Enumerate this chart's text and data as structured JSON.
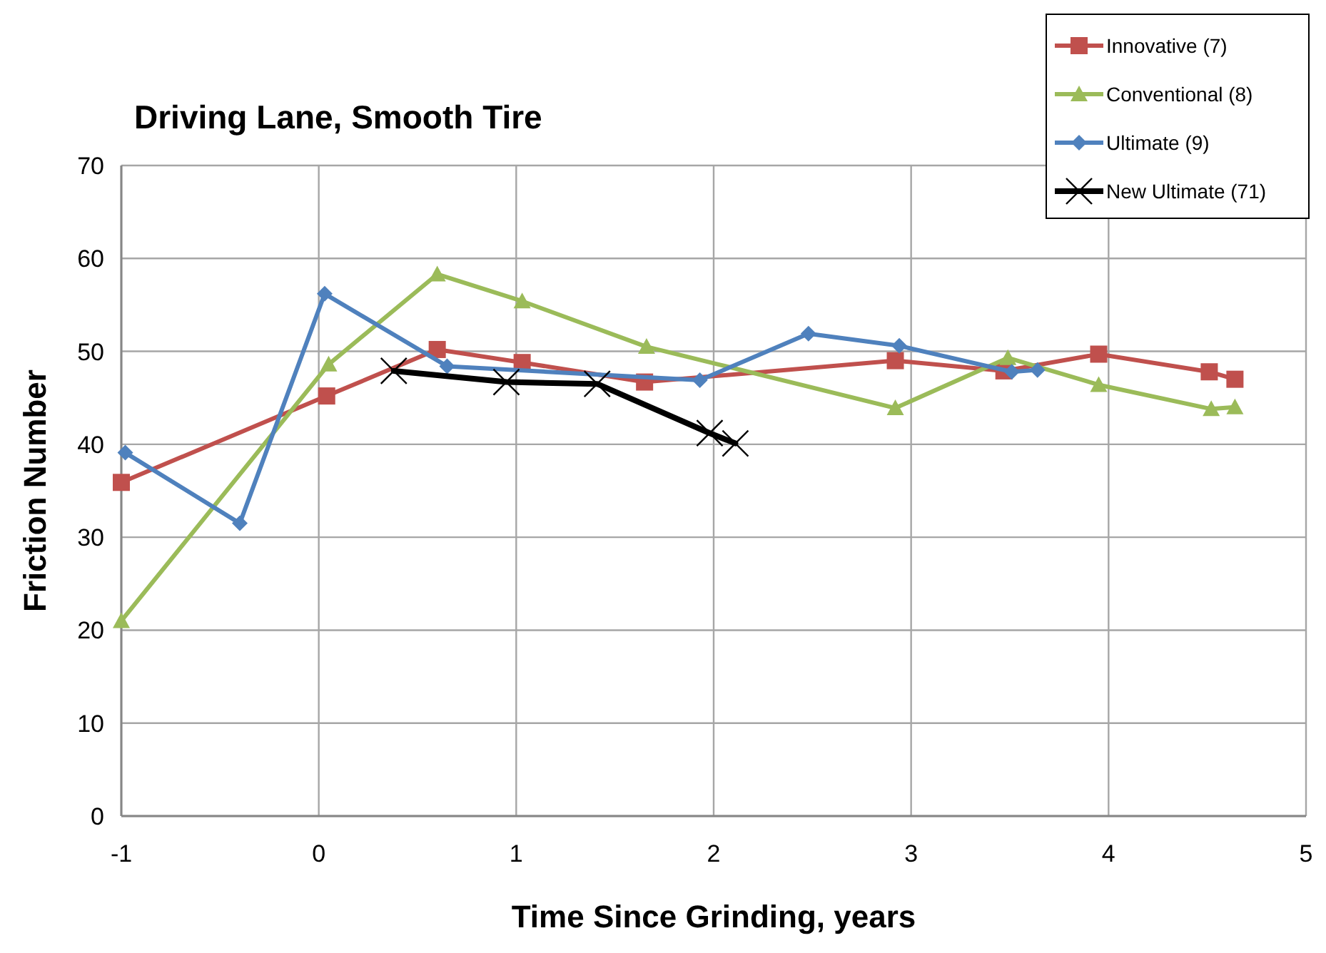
{
  "chart_data": {
    "type": "line",
    "title": "Driving Lane, Smooth Tire",
    "xlabel": "Time Since Grinding, years",
    "ylabel": "Friction Number",
    "xlim": [
      -1,
      5
    ],
    "xticks": [
      -1,
      0,
      1,
      2,
      3,
      4,
      5
    ],
    "ylim": [
      0,
      70
    ],
    "yticks": [
      0,
      10,
      20,
      30,
      40,
      50,
      60,
      70
    ],
    "grid": true,
    "legend": "top right",
    "series": [
      {
        "name": "Innovative (7)",
        "color": "#c0504d",
        "marker": "square",
        "x": [
          -1,
          0.04,
          0.6,
          1.03,
          1.65,
          2.92,
          3.47,
          3.95,
          4.51,
          4.64
        ],
        "values": [
          35.9,
          45.2,
          50.2,
          48.8,
          46.7,
          49.0,
          47.9,
          49.7,
          47.8,
          47.0
        ]
      },
      {
        "name": "Conventional (8)",
        "color": "#9bbb59",
        "marker": "triangle",
        "x": [
          -1,
          0.05,
          0.6,
          1.03,
          1.66,
          2.92,
          3.49,
          3.95,
          4.52,
          4.64
        ],
        "values": [
          21.0,
          48.6,
          58.3,
          55.4,
          50.5,
          43.9,
          49.3,
          46.4,
          43.8,
          44.0
        ]
      },
      {
        "name": "Ultimate (9)",
        "color": "#4f81bd",
        "marker": "diamond",
        "x": [
          -0.98,
          -0.4,
          0.03,
          0.65,
          1.93,
          2.48,
          2.94,
          3.51,
          3.64
        ],
        "values": [
          39.1,
          31.5,
          56.2,
          48.4,
          46.9,
          51.9,
          50.6,
          47.8,
          48.0
        ]
      },
      {
        "name": "New Ultimate (71)",
        "color": "#000000",
        "marker": "cross",
        "x": [
          0.38,
          0.95,
          1.41,
          1.98,
          2.11
        ],
        "values": [
          47.9,
          46.7,
          46.5,
          41.2,
          40.1
        ]
      }
    ]
  }
}
